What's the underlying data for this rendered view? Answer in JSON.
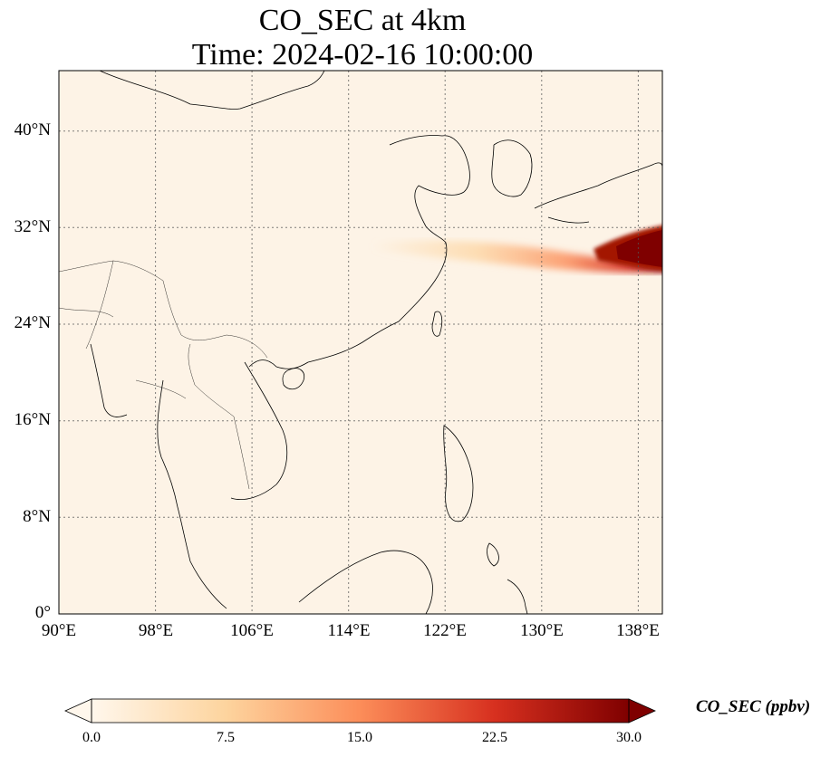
{
  "title": "CO_SEC at 4km",
  "subtitle": "Time: 2024-02-16 10:00:00",
  "map": {
    "lon_range": [
      90,
      140
    ],
    "lat_range": [
      0,
      45
    ],
    "x_ticks": [
      "90°E",
      "98°E",
      "106°E",
      "114°E",
      "122°E",
      "130°E",
      "138°E"
    ],
    "y_ticks": [
      "0°",
      "8°N",
      "16°N",
      "24°N",
      "32°N",
      "40°N"
    ],
    "gridlines": "dotted",
    "colormap": "OrRd",
    "field": "CO_SEC",
    "plume": "high values east of 130°E near 29-31°N, thin band extending west toward 116°E"
  },
  "colorbar": {
    "label": "CO_SEC (ppbv)",
    "ticks": [
      "0.0",
      "7.5",
      "15.0",
      "22.5",
      "30.0"
    ],
    "range": [
      0,
      30
    ],
    "extend": "both",
    "colors": [
      "#fff7ec",
      "#fdd49e",
      "#fc8d59",
      "#d7301f",
      "#7f0000"
    ]
  }
}
